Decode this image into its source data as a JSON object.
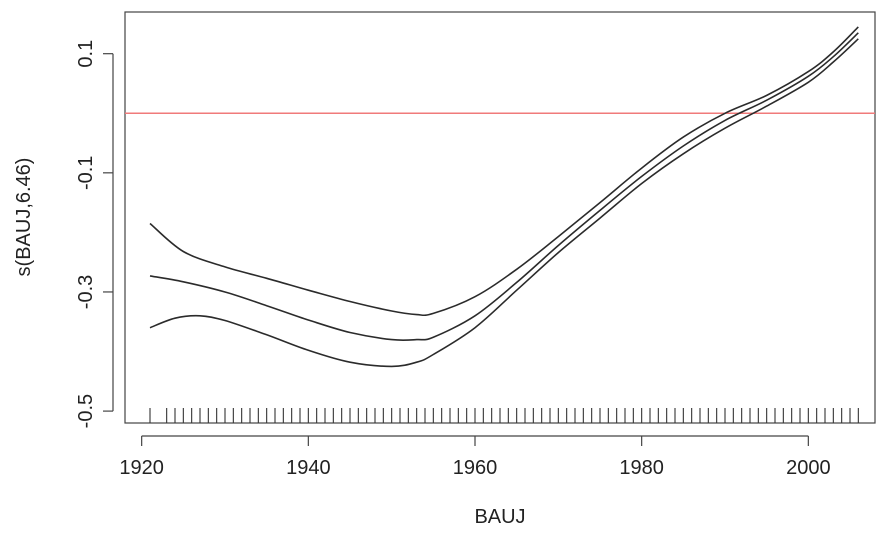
{
  "chart_data": {
    "type": "line",
    "title": "",
    "xlabel": "BAUJ",
    "ylabel": "s(BAUJ,6.46)",
    "xlim": [
      1918,
      2008
    ],
    "ylim": [
      -0.52,
      0.17
    ],
    "x_ticks": [
      "1920",
      "1940",
      "1960",
      "1980",
      "2000"
    ],
    "y_ticks": [
      "-0.5",
      "-0.3",
      "-0.1",
      "0.1"
    ],
    "grid": false,
    "legend": "none",
    "reference_line": {
      "y": 0,
      "color": "#f07a7a"
    },
    "line_color": "#2b2b2b",
    "series": [
      {
        "x": [
          1921,
          1925,
          1930,
          1935,
          1940,
          1945,
          1950,
          1953,
          1955,
          1960,
          1965,
          1970,
          1975,
          1980,
          1985,
          1990,
          1995,
          2000,
          2003,
          2006
        ],
        "values": [
          -0.185,
          -0.232,
          -0.258,
          -0.277,
          -0.297,
          -0.316,
          -0.332,
          -0.338,
          -0.336,
          -0.308,
          -0.262,
          -0.207,
          -0.15,
          -0.092,
          -0.04,
          0.0,
          0.03,
          0.07,
          0.103,
          0.145
        ]
      },
      {
        "x": [
          1921,
          1925,
          1930,
          1935,
          1940,
          1945,
          1950,
          1953,
          1955,
          1960,
          1965,
          1970,
          1975,
          1980,
          1985,
          1990,
          1995,
          2000,
          2003,
          2006
        ],
        "values": [
          -0.273,
          -0.283,
          -0.3,
          -0.323,
          -0.347,
          -0.368,
          -0.38,
          -0.38,
          -0.376,
          -0.34,
          -0.284,
          -0.222,
          -0.163,
          -0.106,
          -0.055,
          -0.012,
          0.022,
          0.062,
          0.095,
          0.135
        ]
      },
      {
        "x": [
          1921,
          1924,
          1927,
          1930,
          1935,
          1940,
          1945,
          1950,
          1953,
          1955,
          1960,
          1965,
          1970,
          1975,
          1980,
          1985,
          1990,
          1995,
          2000,
          2003,
          2006
        ],
        "values": [
          -0.36,
          -0.344,
          -0.34,
          -0.348,
          -0.372,
          -0.398,
          -0.418,
          -0.425,
          -0.418,
          -0.405,
          -0.36,
          -0.297,
          -0.234,
          -0.176,
          -0.118,
          -0.068,
          -0.025,
          0.012,
          0.052,
          0.086,
          0.125
        ]
      }
    ],
    "rug_x": [
      1921,
      1923,
      1924,
      1925,
      1926,
      1927,
      1928,
      1929,
      1930,
      1931,
      1932,
      1933,
      1934,
      1935,
      1936,
      1937,
      1938,
      1939,
      1940,
      1941,
      1942,
      1943,
      1944,
      1945,
      1946,
      1947,
      1948,
      1949,
      1950,
      1951,
      1952,
      1953,
      1954,
      1955,
      1956,
      1957,
      1958,
      1959,
      1960,
      1961,
      1962,
      1963,
      1964,
      1965,
      1966,
      1967,
      1968,
      1969,
      1970,
      1971,
      1972,
      1973,
      1974,
      1975,
      1976,
      1977,
      1978,
      1979,
      1980,
      1981,
      1982,
      1983,
      1984,
      1985,
      1986,
      1987,
      1988,
      1989,
      1990,
      1991,
      1992,
      1993,
      1994,
      1995,
      1996,
      1997,
      1998,
      1999,
      2000,
      2001,
      2002,
      2003,
      2004,
      2005,
      2006
    ]
  }
}
